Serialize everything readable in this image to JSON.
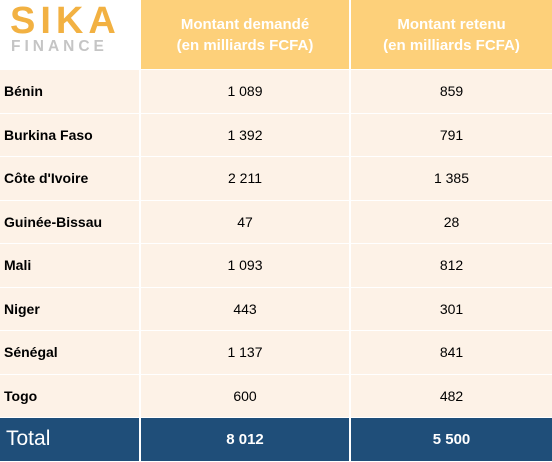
{
  "logo": {
    "top": "SIKA",
    "bottom": "FINANCE"
  },
  "header": {
    "col2_line1": "Montant demandé",
    "col2_line2": "(en milliards FCFA)",
    "col3_line1": "Montant retenu",
    "col3_line2": "(en milliards FCFA)"
  },
  "rows": [
    {
      "country": "Bénin",
      "demande": "1 089",
      "retenu": "859"
    },
    {
      "country": "Burkina Faso",
      "demande": "1 392",
      "retenu": "791"
    },
    {
      "country": "Côte d'Ivoire",
      "demande": "2 211",
      "retenu": "1 385"
    },
    {
      "country": "Guinée-Bissau",
      "demande": "47",
      "retenu": "28"
    },
    {
      "country": "Mali",
      "demande": "1 093",
      "retenu": "812"
    },
    {
      "country": "Niger",
      "demande": "443",
      "retenu": "301"
    },
    {
      "country": "Sénégal",
      "demande": "1 137",
      "retenu": "841"
    },
    {
      "country": "Togo",
      "demande": "600",
      "retenu": "482"
    }
  ],
  "total": {
    "label": "Total",
    "demande": "8 012",
    "retenu": "5 500"
  },
  "colors": {
    "header_bg": "#fdd07a",
    "row_bg": "#fdf2e7",
    "total_bg": "#1f4e79",
    "logo_primary": "#f2b142",
    "logo_secondary": "#c5c5c5"
  }
}
